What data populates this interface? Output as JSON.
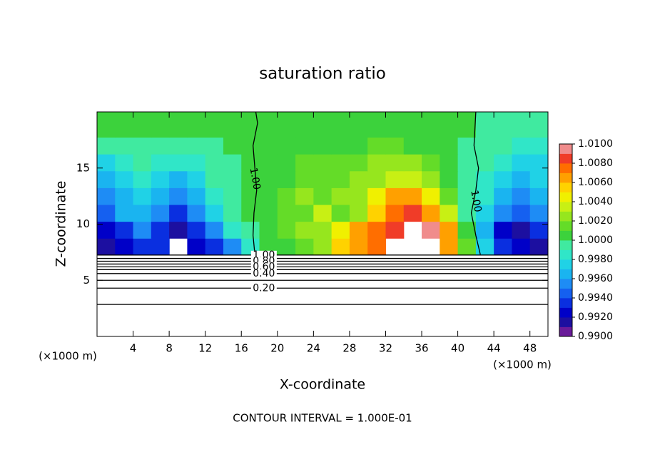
{
  "chart_data": {
    "type": "contour",
    "title": "saturation ratio",
    "xlabel": "X-coordinate",
    "ylabel": "Z-coordinate",
    "x_unit_label": "(×1000 m)",
    "footnote": "CONTOUR INTERVAL = 1.000E-01",
    "xlim": [
      0,
      50
    ],
    "ylim": [
      0,
      20
    ],
    "xticks": [
      4,
      8,
      12,
      16,
      20,
      24,
      28,
      32,
      36,
      40,
      44,
      48
    ],
    "yticks": [
      5,
      10,
      15
    ],
    "x": [
      1,
      3,
      5,
      7,
      9,
      11,
      13,
      15,
      17,
      19,
      21,
      23,
      25,
      27,
      29,
      31,
      33,
      35,
      37,
      39,
      41,
      43,
      45,
      47,
      49
    ],
    "y": [
      8,
      9.5,
      11,
      12.5,
      14,
      15.5,
      17,
      18.5
    ],
    "z": [
      [
        0.9918,
        0.9925,
        0.993,
        0.9935,
        null,
        0.9925,
        0.993,
        0.995,
        0.9985,
        1.0002,
        1.0008,
        1.0015,
        1.0028,
        1.0055,
        1.0068,
        1.0072,
        null,
        null,
        null,
        1.006,
        1.0015,
        0.997,
        0.9935,
        0.9925,
        0.9918
      ],
      [
        0.9925,
        0.9935,
        0.995,
        0.9935,
        0.9918,
        0.993,
        0.9955,
        0.998,
        0.9998,
        1.0005,
        1.0012,
        1.002,
        1.003,
        1.0045,
        1.0065,
        1.0075,
        1.0088,
        null,
        1.0092,
        1.0062,
        1.0005,
        0.9965,
        0.9925,
        0.9918,
        0.9935
      ],
      [
        0.9945,
        0.996,
        0.9968,
        0.995,
        0.9932,
        0.995,
        0.997,
        0.999,
        1.0,
        1.0006,
        1.0014,
        1.0018,
        1.0035,
        1.0015,
        1.003,
        1.0055,
        1.0072,
        1.0088,
        1.007,
        1.0035,
        0.9998,
        0.9975,
        0.9955,
        0.9945,
        0.995
      ],
      [
        0.9955,
        0.9965,
        0.9975,
        0.996,
        0.995,
        0.9965,
        0.9985,
        0.9995,
        1.0,
        1.0008,
        1.0014,
        1.002,
        1.0018,
        1.002,
        1.0028,
        1.004,
        1.006,
        1.0062,
        1.0045,
        1.0018,
        0.9998,
        0.998,
        0.9965,
        0.995,
        0.996
      ],
      [
        0.9965,
        0.9975,
        0.9985,
        0.9975,
        0.9965,
        0.9975,
        0.999,
        0.9996,
        1.0,
        1.0006,
        1.001,
        1.0016,
        1.0018,
        1.0016,
        1.002,
        1.003,
        1.0036,
        1.0034,
        1.0025,
        1.001,
        0.9998,
        0.9988,
        0.9975,
        0.9962,
        0.997
      ],
      [
        0.9975,
        0.9982,
        0.999,
        0.9988,
        0.9982,
        0.9986,
        0.9995,
        0.9998,
        1.0002,
        1.0006,
        1.001,
        1.0012,
        1.0014,
        1.0013,
        1.0016,
        1.002,
        1.0022,
        1.002,
        1.0014,
        1.0006,
        0.9998,
        0.9994,
        0.9985,
        0.9972,
        0.9978
      ],
      [
        0.9992,
        0.9995,
        0.9998,
        0.9998,
        0.9995,
        0.9996,
        0.9999,
        1.0002,
        1.0004,
        1.0006,
        1.0007,
        1.0008,
        1.0008,
        1.0008,
        1.001,
        1.0011,
        1.0012,
        1.001,
        1.0008,
        1.0004,
        0.9999,
        0.9997,
        0.9992,
        0.9984,
        0.9986
      ],
      [
        1.0002,
        1.0002,
        1.0003,
        1.0004,
        1.0004,
        1.0005,
        1.0006,
        1.0006,
        1.0006,
        1.0006,
        1.0006,
        1.0006,
        1.0006,
        1.0007,
        1.0007,
        1.0007,
        1.0007,
        1.0006,
        1.0005,
        1.0003,
        1.0,
        0.9998,
        0.9996,
        0.9994,
        0.9993
      ]
    ],
    "colorbar": {
      "lim": [
        0.99,
        1.01
      ],
      "colors": [
        "#6a1b9a",
        "#1c0fa0",
        "#0000c8",
        "#0a2fe0",
        "#1560f0",
        "#1e8cf5",
        "#1ab4f0",
        "#20d2e6",
        "#30e6c8",
        "#40eaa0",
        "#3cd23c",
        "#64dc28",
        "#96e61e",
        "#c8f014",
        "#f0f000",
        "#ffd200",
        "#ffa000",
        "#ff6e00",
        "#f03c28",
        "#f08c8c"
      ],
      "ticks": [
        {
          "value": 0.99,
          "label": "0.9900"
        },
        {
          "value": 0.992,
          "label": "0.9920"
        },
        {
          "value": 0.994,
          "label": "0.9940"
        },
        {
          "value": 0.996,
          "label": "0.9960"
        },
        {
          "value": 0.998,
          "label": "0.9980"
        },
        {
          "value": 1.0,
          "label": "1.0000"
        },
        {
          "value": 1.002,
          "label": "1.0020"
        },
        {
          "value": 1.004,
          "label": "1.0040"
        },
        {
          "value": 1.006,
          "label": "1.0060"
        },
        {
          "value": 1.008,
          "label": "1.0080"
        },
        {
          "value": 1.01,
          "label": "1.0100"
        }
      ]
    },
    "contours": [
      {
        "label": "1.00",
        "x": [
          17.5,
          17.3,
          17.4,
          17.7,
          17.5,
          17.3,
          17.8,
          17.6
        ],
        "y": [
          7.3,
          9,
          11,
          13,
          15,
          17,
          19,
          20
        ]
      },
      {
        "label": "1.00",
        "x": [
          42.5,
          42,
          41.5,
          42,
          42.3,
          41.8,
          42
        ],
        "y": [
          7.3,
          9,
          11,
          13,
          15,
          17,
          20
        ]
      },
      {
        "label": "1.00",
        "x": [
          0,
          50
        ],
        "y": [
          7.25,
          7.25
        ]
      },
      {
        "x": [
          0,
          50
        ],
        "y": [
          6.95,
          6.95
        ]
      },
      {
        "label": "0.80",
        "x": [
          0,
          50
        ],
        "y": [
          6.7,
          6.7
        ]
      },
      {
        "x": [
          0,
          50
        ],
        "y": [
          6.45,
          6.45
        ]
      },
      {
        "label": "0.60",
        "x": [
          0,
          50
        ],
        "y": [
          6.2,
          6.2
        ]
      },
      {
        "x": [
          0,
          50
        ],
        "y": [
          5.95,
          5.95
        ]
      },
      {
        "label": "0.40",
        "x": [
          0,
          50
        ],
        "y": [
          5.6,
          5.6
        ]
      },
      {
        "x": [
          0,
          50
        ],
        "y": [
          5.0,
          5.0
        ]
      },
      {
        "label": "0.20",
        "x": [
          0,
          50
        ],
        "y": [
          4.3,
          4.3
        ]
      },
      {
        "x": [
          0,
          50
        ],
        "y": [
          2.85,
          2.85
        ]
      }
    ]
  }
}
